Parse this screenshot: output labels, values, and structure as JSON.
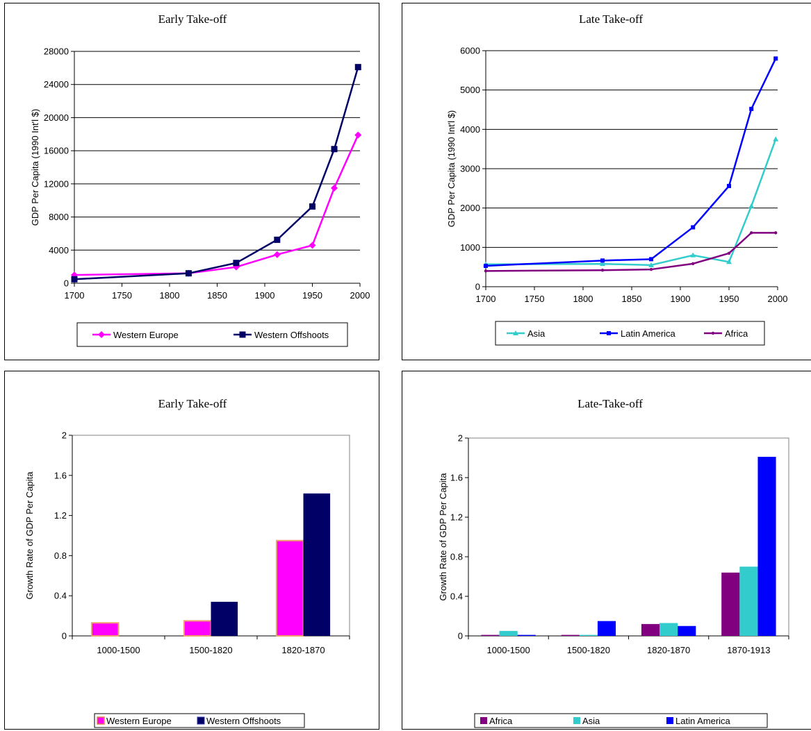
{
  "colors": {
    "western_europe": "#ff00ff",
    "western_offshoots": "#000066",
    "asia": "#33cccc",
    "latin_america": "#0000ff",
    "africa": "#800080"
  },
  "chart_data": [
    {
      "type": "line",
      "title": "Early Take-off",
      "ylabel": "GDP Per Capita (1990 Int'l $)",
      "xlabel": "",
      "xlim": [
        1700,
        2000
      ],
      "xticks": [
        "1700",
        "1750",
        "1800",
        "1850",
        "1900",
        "1950",
        "2000"
      ],
      "ylim": [
        0,
        28000
      ],
      "yticks": [
        "0",
        "4000",
        "8000",
        "12000",
        "16000",
        "20000",
        "24000",
        "28000"
      ],
      "grid": true,
      "legend_placement": "bottom",
      "series": [
        {
          "name": "Western Europe",
          "marker": "diamond",
          "color_key": "western_europe",
          "x": [
            1700,
            1820,
            1870,
            1913,
            1950,
            1973,
            1998
          ],
          "y": [
            1000,
            1200,
            1960,
            3460,
            4580,
            11500,
            17900
          ]
        },
        {
          "name": "Western Offshoots",
          "marker": "square",
          "color_key": "western_offshoots",
          "x": [
            1700,
            1820,
            1870,
            1913,
            1950,
            1973,
            1998
          ],
          "y": [
            480,
            1200,
            2450,
            5250,
            9270,
            16200,
            26100
          ]
        }
      ]
    },
    {
      "type": "line",
      "title": "Late Take-off",
      "ylabel": "GDP Per Capita (1990 Int'l $)",
      "xlabel": "",
      "xlim": [
        1700,
        2000
      ],
      "xticks": [
        "1700",
        "1750",
        "1800",
        "1850",
        "1900",
        "1950",
        "2000"
      ],
      "ylim": [
        0,
        6000
      ],
      "yticks": [
        "0",
        "1000",
        "2000",
        "3000",
        "4000",
        "5000",
        "6000"
      ],
      "grid": true,
      "legend_placement": "bottom",
      "series": [
        {
          "name": "Asia",
          "marker": "triangle",
          "color_key": "asia",
          "x": [
            1700,
            1820,
            1870,
            1913,
            1950,
            1973,
            1998
          ],
          "y": [
            570,
            580,
            550,
            800,
            630,
            2050,
            3750
          ]
        },
        {
          "name": "Latin America",
          "marker": "small-square",
          "color_key": "latin_america",
          "x": [
            1700,
            1820,
            1870,
            1913,
            1950,
            1973,
            1998
          ],
          "y": [
            530,
            665,
            700,
            1510,
            2560,
            4520,
            5800
          ]
        },
        {
          "name": "Africa",
          "marker": "dot",
          "color_key": "africa",
          "x": [
            1700,
            1820,
            1870,
            1913,
            1950,
            1973,
            1998
          ],
          "y": [
            400,
            420,
            440,
            585,
            850,
            1370,
            1370
          ]
        }
      ]
    },
    {
      "type": "bar",
      "title": "Early Take-off",
      "ylabel": "Growth Rate of GDP Per Capita",
      "xlabel": "",
      "categories": [
        "1000-1500",
        "1500-1820",
        "1820-1870"
      ],
      "ylim": [
        0,
        2
      ],
      "yticks": [
        "0",
        "0.4",
        "0.8",
        "1.2",
        "1.6",
        "2"
      ],
      "grid": false,
      "legend_placement": "bottom",
      "series": [
        {
          "name": "Western Europe",
          "color_key": "western_europe",
          "values": [
            0.13,
            0.15,
            0.95
          ]
        },
        {
          "name": "Western Offshoots",
          "color_key": "western_offshoots",
          "values": [
            0.0,
            0.34,
            1.42
          ]
        }
      ]
    },
    {
      "type": "bar",
      "title": "Late-Take-off",
      "ylabel": "Growth Rate of GDP Per Capita",
      "xlabel": "",
      "categories": [
        "1000-1500",
        "1500-1820",
        "1820-1870",
        "1870-1913"
      ],
      "ylim": [
        0,
        2
      ],
      "yticks": [
        "0",
        "0.4",
        "0.8",
        "1.2",
        "1.6",
        "2"
      ],
      "grid": false,
      "legend_placement": "bottom",
      "series": [
        {
          "name": "Africa",
          "color_key": "africa",
          "values": [
            0.01,
            0.01,
            0.12,
            0.64
          ]
        },
        {
          "name": "Asia",
          "color_key": "asia",
          "values": [
            0.05,
            0.01,
            0.13,
            0.7
          ]
        },
        {
          "name": "Latin America",
          "color_key": "latin_america",
          "values": [
            0.01,
            0.15,
            0.1,
            1.81
          ]
        }
      ]
    }
  ]
}
